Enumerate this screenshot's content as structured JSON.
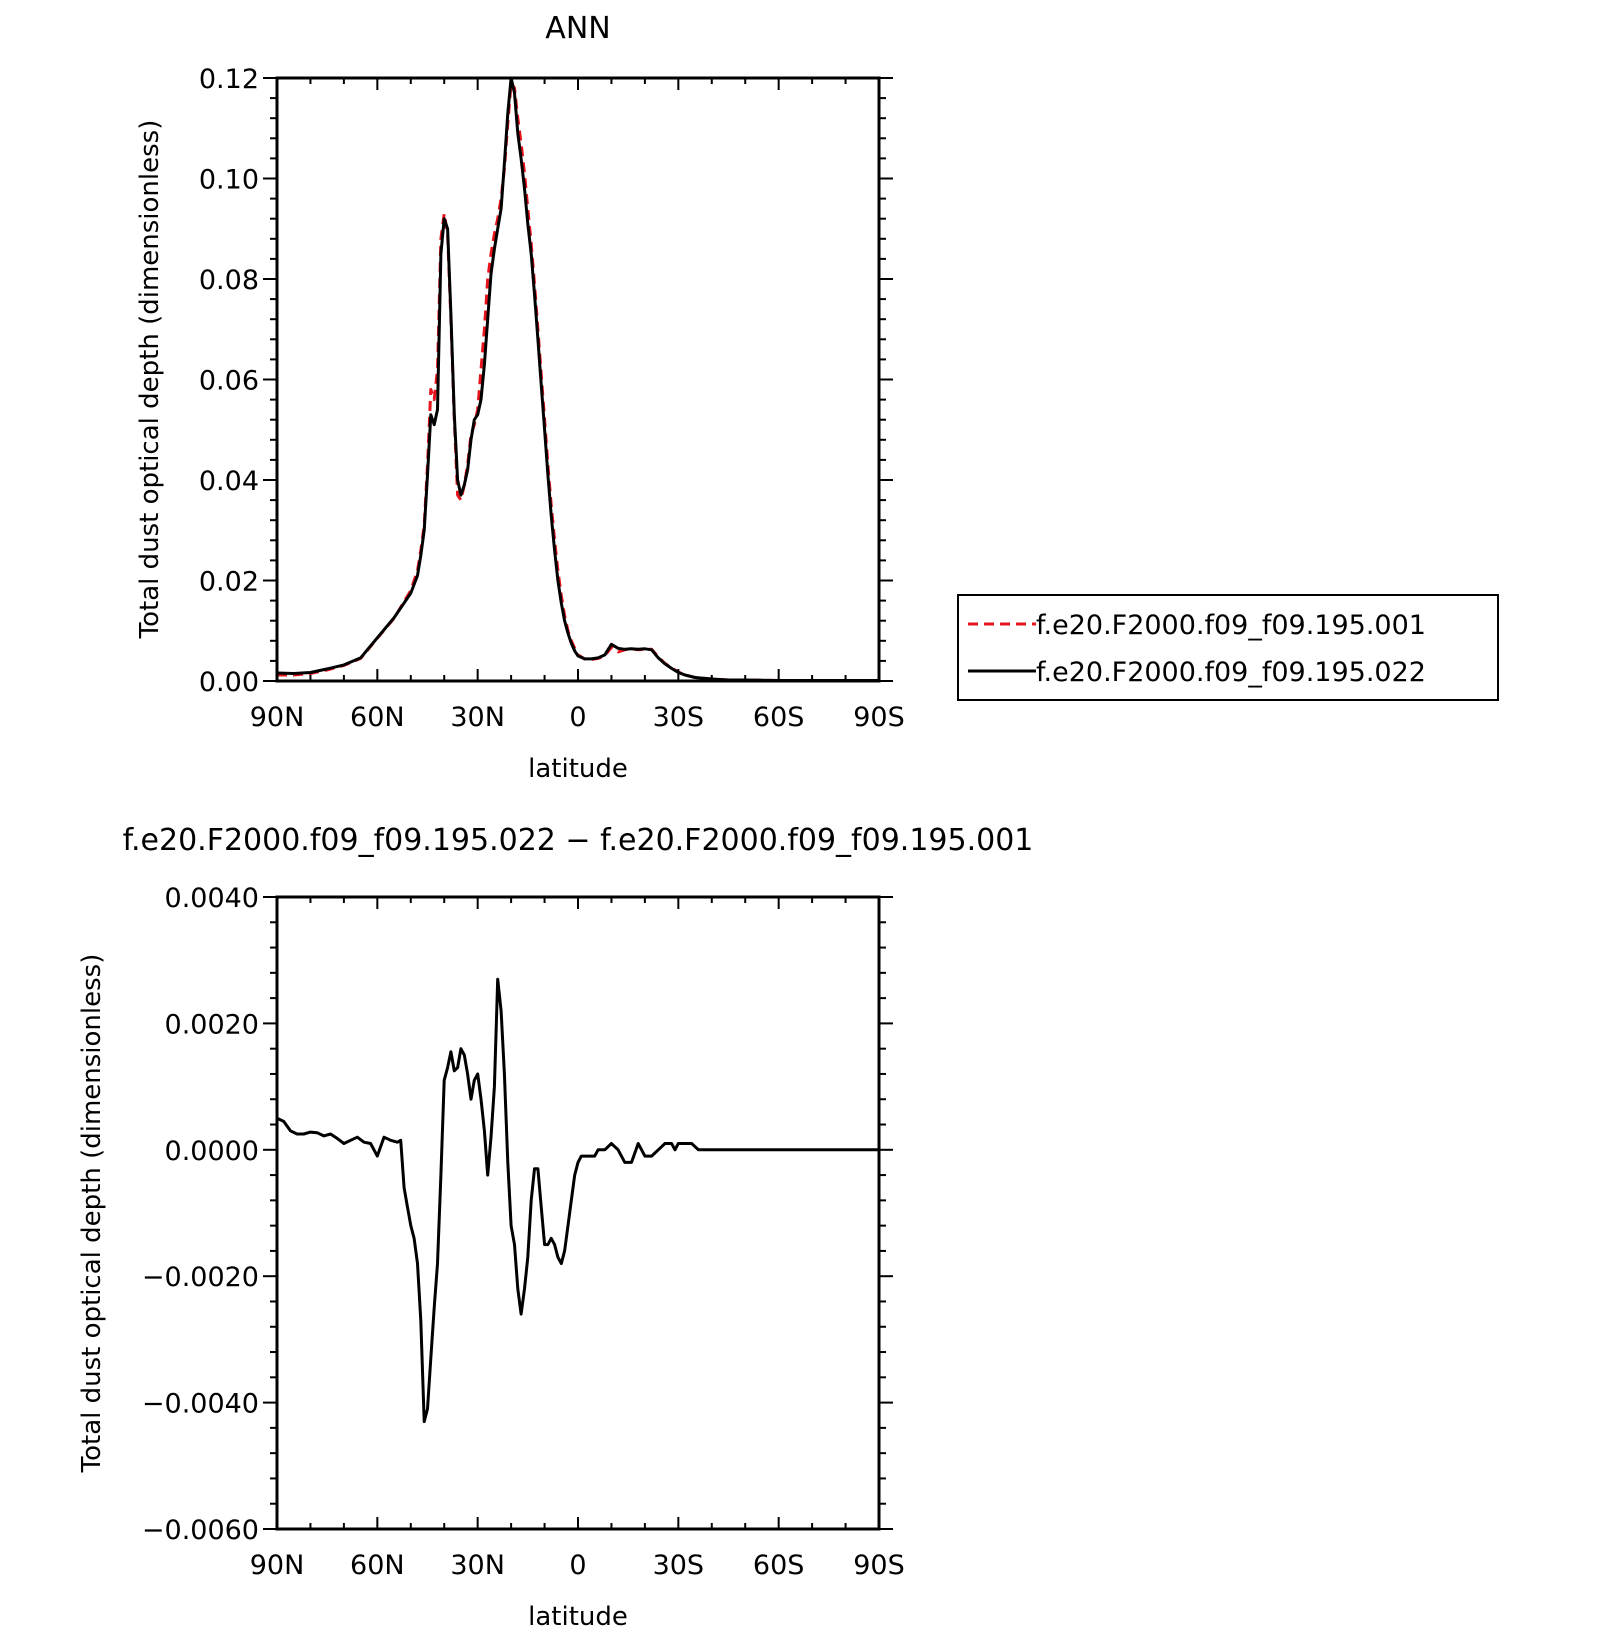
{
  "chart_data": [
    {
      "type": "line",
      "title": "ANN",
      "xlabel": "latitude",
      "ylabel": "Total dust optical depth (dimensionless)",
      "xlim": [
        90,
        -90
      ],
      "ylim": [
        0,
        0.12
      ],
      "x_ticks": [
        {
          "value": 90,
          "label": "90N"
        },
        {
          "value": 60,
          "label": "60N"
        },
        {
          "value": 30,
          "label": "30N"
        },
        {
          "value": 0,
          "label": "0"
        },
        {
          "value": -30,
          "label": "30S"
        },
        {
          "value": -60,
          "label": "60S"
        },
        {
          "value": -90,
          "label": "90S"
        }
      ],
      "y_ticks": [
        {
          "value": 0.0,
          "label": "0.00"
        },
        {
          "value": 0.02,
          "label": "0.02"
        },
        {
          "value": 0.04,
          "label": "0.04"
        },
        {
          "value": 0.06,
          "label": "0.06"
        },
        {
          "value": 0.08,
          "label": "0.08"
        },
        {
          "value": 0.1,
          "label": "0.10"
        },
        {
          "value": 0.12,
          "label": "0.12"
        }
      ],
      "legend_position": "right",
      "series": [
        {
          "name": "f.e20.F2000.f09_f09.195.001",
          "color": "#e8141c",
          "dash": "dashed",
          "x": [
            90,
            85,
            80,
            75,
            70,
            65,
            60,
            55,
            50,
            48,
            47,
            46,
            45,
            44,
            43,
            42,
            41,
            40,
            39,
            38,
            37,
            36,
            35,
            34,
            33,
            32,
            31,
            30,
            29,
            28,
            27,
            26,
            25,
            24,
            23,
            22,
            21,
            20,
            19,
            18,
            17,
            16,
            15,
            14,
            13,
            12,
            11,
            10,
            9,
            8,
            7,
            6,
            5,
            4,
            3,
            2,
            1,
            0,
            -2,
            -4,
            -6,
            -8,
            -10,
            -12,
            -14,
            -16,
            -18,
            -20,
            -22,
            -24,
            -26,
            -28,
            -30,
            -32,
            -35,
            -40,
            -45,
            -50,
            -60,
            -70,
            -80,
            -90
          ],
          "y": [
            0.0012,
            0.0012,
            0.0015,
            0.0022,
            0.0031,
            0.0045,
            0.0085,
            0.0125,
            0.018,
            0.022,
            0.026,
            0.031,
            0.043,
            0.058,
            0.056,
            0.062,
            0.088,
            0.093,
            0.089,
            0.072,
            0.052,
            0.037,
            0.036,
            0.039,
            0.043,
            0.049,
            0.051,
            0.054,
            0.062,
            0.07,
            0.08,
            0.085,
            0.089,
            0.092,
            0.096,
            0.102,
            0.111,
            0.119,
            0.118,
            0.112,
            0.107,
            0.101,
            0.094,
            0.087,
            0.079,
            0.07,
            0.061,
            0.052,
            0.043,
            0.035,
            0.028,
            0.022,
            0.017,
            0.013,
            0.01,
            0.008,
            0.0065,
            0.0052,
            0.0044,
            0.0043,
            0.0045,
            0.005,
            0.0067,
            0.0058,
            0.0062,
            0.0064,
            0.0062,
            0.0063,
            0.0063,
            0.0048,
            0.0035,
            0.0026,
            0.0018,
            0.0012,
            0.0007,
            0.0004,
            0.0002,
            0.0002,
            0.0001,
            0.0001,
            0.0001,
            0.0001
          ]
        },
        {
          "name": "f.e20.F2000.f09_f09.195.022",
          "color": "#000000",
          "dash": "solid",
          "x": [
            90,
            85,
            80,
            75,
            70,
            65,
            60,
            55,
            50,
            48,
            47,
            46,
            45,
            44,
            43,
            42,
            41,
            40,
            39,
            38,
            37,
            36,
            35,
            34,
            33,
            32,
            31,
            30,
            29,
            28,
            27,
            26,
            25,
            24,
            23,
            22,
            21,
            20,
            19,
            18,
            17,
            16,
            15,
            14,
            13,
            12,
            11,
            10,
            9,
            8,
            7,
            6,
            5,
            4,
            3,
            2,
            1,
            0,
            -2,
            -4,
            -6,
            -8,
            -10,
            -12,
            -14,
            -16,
            -18,
            -20,
            -22,
            -24,
            -26,
            -28,
            -30,
            -32,
            -35,
            -40,
            -45,
            -50,
            -60,
            -70,
            -80,
            -90
          ],
          "y": [
            0.0016,
            0.0015,
            0.0017,
            0.0024,
            0.0032,
            0.0046,
            0.0086,
            0.0126,
            0.0175,
            0.021,
            0.025,
            0.03,
            0.041,
            0.053,
            0.051,
            0.054,
            0.085,
            0.092,
            0.09,
            0.073,
            0.053,
            0.04,
            0.037,
            0.039,
            0.042,
            0.048,
            0.052,
            0.053,
            0.056,
            0.063,
            0.072,
            0.081,
            0.086,
            0.09,
            0.094,
            0.103,
            0.113,
            0.12,
            0.117,
            0.109,
            0.104,
            0.098,
            0.091,
            0.085,
            0.077,
            0.068,
            0.059,
            0.05,
            0.041,
            0.033,
            0.026,
            0.02,
            0.0155,
            0.012,
            0.0095,
            0.0075,
            0.006,
            0.005,
            0.0044,
            0.0044,
            0.0046,
            0.0052,
            0.0073,
            0.0065,
            0.0063,
            0.0064,
            0.0063,
            0.0064,
            0.0062,
            0.0046,
            0.0034,
            0.0025,
            0.0017,
            0.0012,
            0.0007,
            0.0004,
            0.0002,
            0.0002,
            0.0001,
            0.0001,
            0.0001,
            0.0001
          ]
        }
      ]
    },
    {
      "type": "line",
      "title": "f.e20.F2000.f09_f09.195.022 − f.e20.F2000.f09_f09.195.001",
      "xlabel": "latitude",
      "ylabel": "Total dust optical depth (dimensionless)",
      "xlim": [
        90,
        -90
      ],
      "ylim": [
        -0.006,
        0.004
      ],
      "x_ticks": [
        {
          "value": 90,
          "label": "90N"
        },
        {
          "value": 60,
          "label": "60N"
        },
        {
          "value": 30,
          "label": "30N"
        },
        {
          "value": 0,
          "label": "0"
        },
        {
          "value": -30,
          "label": "30S"
        },
        {
          "value": -60,
          "label": "60S"
        },
        {
          "value": -90,
          "label": "90S"
        }
      ],
      "y_ticks": [
        {
          "value": -0.006,
          "label": "−0.0060"
        },
        {
          "value": -0.004,
          "label": "−0.0040"
        },
        {
          "value": -0.002,
          "label": "−0.0020"
        },
        {
          "value": 0.0,
          "label": "0.0000"
        },
        {
          "value": 0.002,
          "label": "0.0020"
        },
        {
          "value": 0.004,
          "label": "0.0040"
        }
      ],
      "series": [
        {
          "color": "#000000",
          "dash": "solid",
          "x": [
            90,
            88,
            86,
            84,
            82,
            80,
            78,
            76,
            74,
            72,
            70,
            68,
            66,
            64,
            62,
            60,
            58,
            56,
            54,
            53,
            52,
            51,
            50,
            49,
            48,
            47,
            46,
            45,
            44,
            43,
            42,
            41,
            40,
            39,
            38,
            37,
            36,
            35,
            34,
            33,
            32,
            31,
            30,
            29,
            28,
            27,
            26,
            25,
            24,
            23,
            22,
            21,
            20,
            19,
            18,
            17,
            16,
            15,
            14,
            13,
            12,
            11,
            10,
            9,
            8,
            7,
            6,
            5,
            4,
            3,
            2,
            1,
            0,
            -1,
            -2,
            -3,
            -4,
            -5,
            -6,
            -8,
            -10,
            -12,
            -14,
            -16,
            -18,
            -20,
            -22,
            -24,
            -26,
            -28,
            -29,
            -30,
            -32,
            -34,
            -36,
            -38,
            -40,
            -42,
            -44,
            -46,
            -48,
            -50,
            -55,
            -60,
            -70,
            -80,
            -90
          ],
          "y": [
            0.0005,
            0.00045,
            0.0003,
            0.00025,
            0.00025,
            0.00028,
            0.00027,
            0.00022,
            0.00025,
            0.00018,
            0.0001,
            0.00015,
            0.0002,
            0.00012,
            0.0001,
            -0.0001,
            0.0002,
            0.00015,
            0.00012,
            0.00015,
            -0.0006,
            -0.0009,
            -0.0012,
            -0.0014,
            -0.0018,
            -0.0027,
            -0.0043,
            -0.0041,
            -0.0033,
            -0.0025,
            -0.0018,
            -0.0004,
            0.0011,
            0.0013,
            0.00155,
            0.00125,
            0.0013,
            0.0016,
            0.0015,
            0.0012,
            0.0008,
            0.0011,
            0.0012,
            0.0008,
            0.0003,
            -0.0004,
            0.0002,
            0.001,
            0.0027,
            0.0022,
            0.0012,
            -0.0002,
            -0.0012,
            -0.0015,
            -0.0022,
            -0.0026,
            -0.0022,
            -0.0017,
            -0.0008,
            -0.0003,
            -0.0003,
            -0.0009,
            -0.0015,
            -0.0015,
            -0.0014,
            -0.0015,
            -0.0017,
            -0.0018,
            -0.0016,
            -0.0012,
            -0.0008,
            -0.0004,
            -0.0002,
            -0.0001,
            -0.0001,
            -0.0001,
            -0.0001,
            -0.0001,
            0.0,
            0.0,
            0.0001,
            0.0,
            -0.0002,
            -0.0002,
            0.0001,
            -0.0001,
            -0.0001,
            0.0,
            0.0001,
            0.0001,
            0.0,
            0.0001,
            0.0001,
            0.0001,
            0.0,
            0.0,
            0.0,
            0.0,
            0.0,
            0.0,
            0.0,
            0.0,
            0.0,
            0.0,
            0.0,
            0.0,
            0.0
          ]
        }
      ]
    }
  ]
}
